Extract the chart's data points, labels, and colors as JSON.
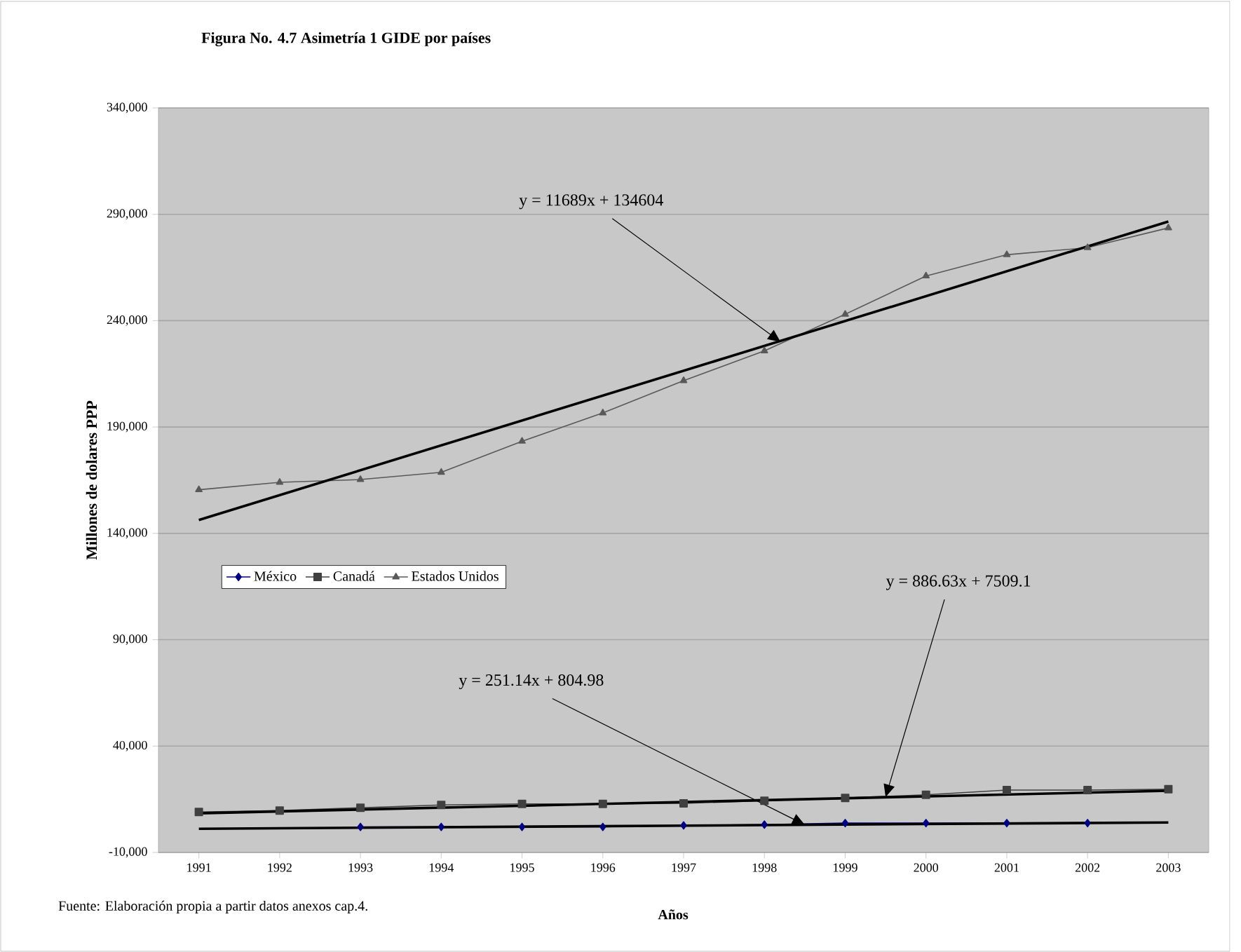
{
  "chart_data": {
    "type": "line",
    "title": "Figura No. 4.7 Asimetría 1 GIDE por países",
    "xlabel": "Años",
    "ylabel": "Millones de dolares PPP",
    "x": [
      1991,
      1992,
      1993,
      1994,
      1995,
      1996,
      1997,
      1998,
      1999,
      2000,
      2001,
      2002,
      2003
    ],
    "series": [
      {
        "name": "México",
        "color": "#000080",
        "marker": "diamond",
        "values": [
          null,
          null,
          2000,
          2000,
          2000,
          2000,
          2700,
          3100,
          3800,
          3800,
          3800,
          3800,
          null
        ]
      },
      {
        "name": "Canadá",
        "color": "#404040",
        "marker": "square",
        "values": [
          9000,
          9700,
          11000,
          12300,
          12800,
          12800,
          13100,
          14300,
          15600,
          17100,
          19300,
          19300,
          19700
        ]
      },
      {
        "name": "Estados Unidos",
        "color": "#595959",
        "marker": "triangle",
        "values": [
          160500,
          164000,
          165300,
          168700,
          183300,
          196600,
          211800,
          225800,
          243000,
          261000,
          271000,
          274300,
          283600
        ]
      },
      {
        "type": "line",
        "color": "#000000",
        "marker": "none",
        "values": [
          1100,
          null,
          null,
          null,
          null,
          null,
          null,
          null,
          null,
          null,
          null,
          null,
          4100
        ]
      },
      {
        "type": "line",
        "color": "#000000",
        "marker": "none",
        "values": [
          8400,
          null,
          null,
          null,
          null,
          null,
          null,
          null,
          null,
          null,
          null,
          null,
          19000
        ]
      },
      {
        "type": "line",
        "color": "#000000",
        "marker": "none",
        "values": [
          146300,
          null,
          null,
          null,
          null,
          null,
          null,
          null,
          null,
          null,
          null,
          null,
          286600
        ]
      }
    ],
    "xlim": [
      1990.5,
      2003.5
    ],
    "xticks": [
      1991,
      1992,
      1993,
      1994,
      1995,
      1996,
      1997,
      1998,
      1999,
      2000,
      2001,
      2002,
      2003
    ],
    "ylim": [
      -10000,
      340000
    ],
    "yticks": [
      {
        "value": -10000,
        "label": "-10,000"
      },
      {
        "value": 40000,
        "label": "40,000"
      },
      {
        "value": 90000,
        "label": "90,000"
      },
      {
        "value": 140000,
        "label": "140,000"
      },
      {
        "value": 190000,
        "label": "190,000"
      },
      {
        "value": 240000,
        "label": "240,000"
      },
      {
        "value": 290000,
        "label": "290,000"
      },
      {
        "value": 340000,
        "label": "340,000"
      }
    ],
    "grid": "y",
    "legend": "left",
    "annotations": [
      {
        "text": "y = 11689x + 134604",
        "x": 1998.2,
        "y": 230000
      },
      {
        "text": "y = 886.63x + 7509.1",
        "x": 1999.5,
        "y": 16000
      },
      {
        "text": "y = 251.14x + 804.98",
        "x": 1998.5,
        "y": 3000
      },
      "Fuente: Elaboración propia a partir datos anexos cap.4."
    ]
  }
}
